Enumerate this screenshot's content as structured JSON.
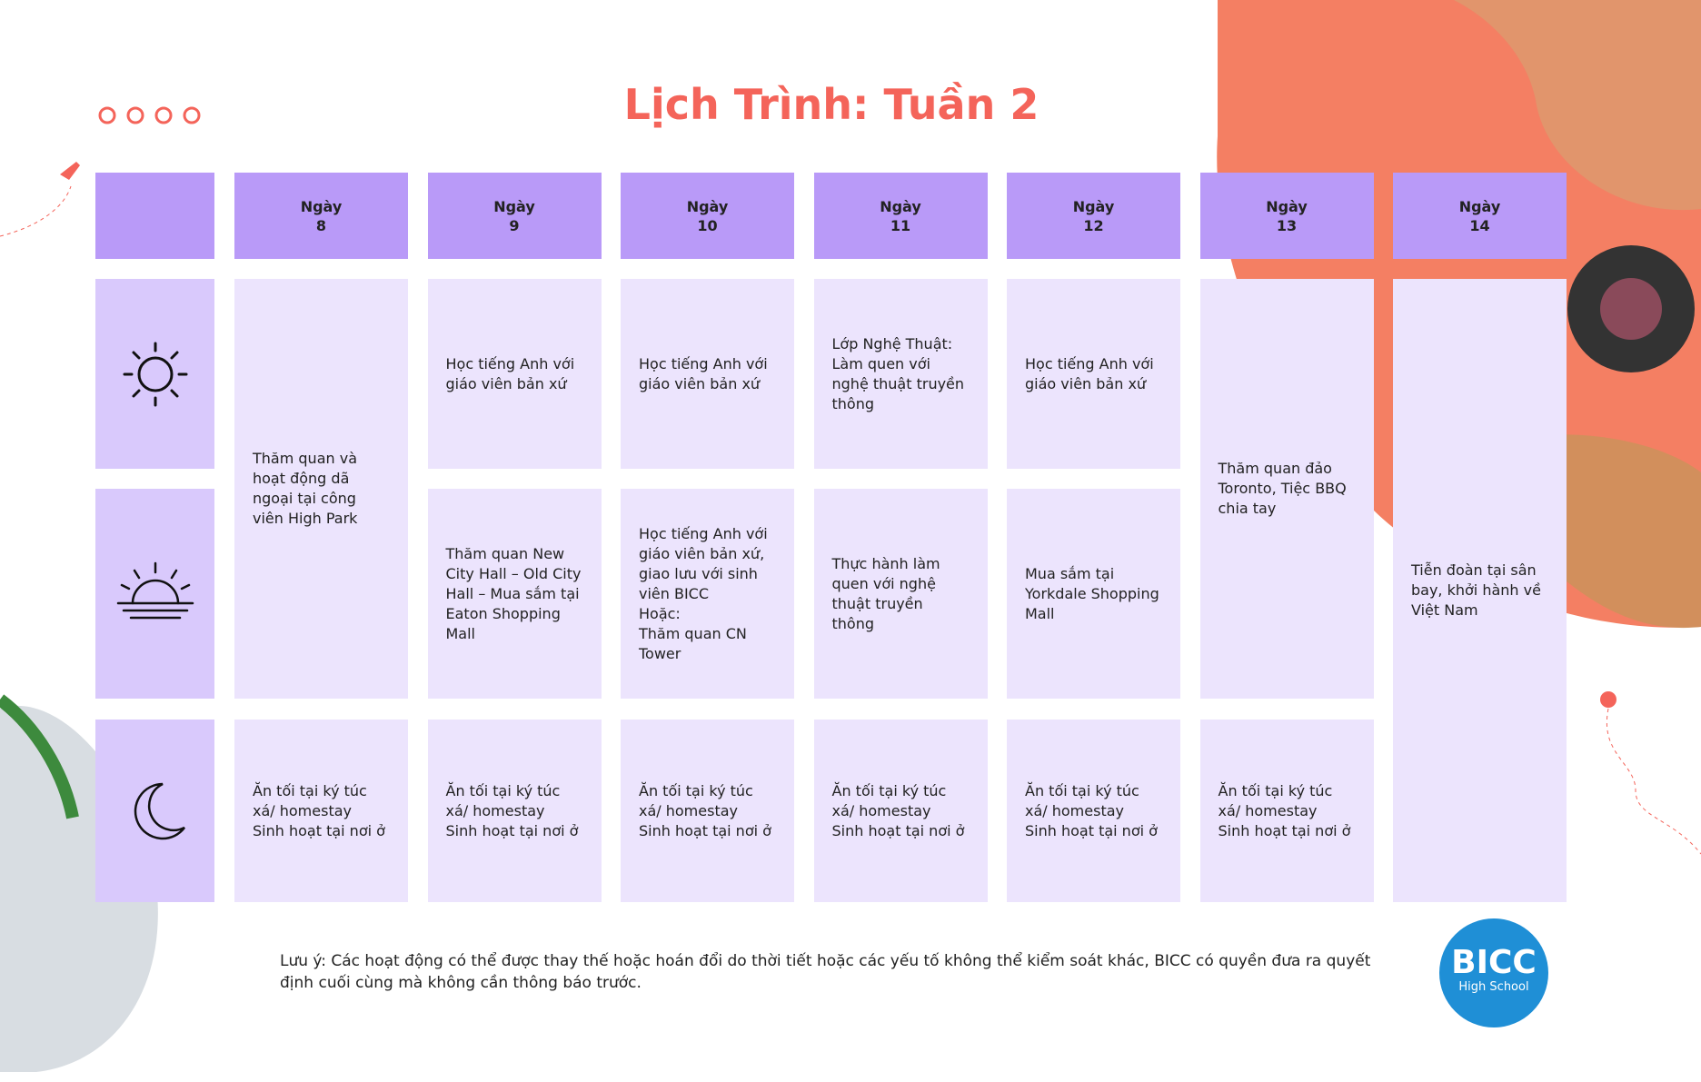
{
  "title": "Lịch Trình: Tuần 2",
  "days": [
    {
      "label": "Ngày",
      "number": "8"
    },
    {
      "label": "Ngày",
      "number": "9"
    },
    {
      "label": "Ngày",
      "number": "10"
    },
    {
      "label": "Ngày",
      "number": "11"
    },
    {
      "label": "Ngày",
      "number": "12"
    },
    {
      "label": "Ngày",
      "number": "13"
    },
    {
      "label": "Ngày",
      "number": "14"
    }
  ],
  "schedule": [
    "Thăm quan và hoạt động dã ngoại tại công viên High Park",
    "Học tiếng Anh với giáo viên bản xứ",
    "Học tiếng Anh với giáo viên bản xứ",
    "Lớp Nghệ Thuật: Làm quen với nghệ thuật truyền thông",
    "Học tiếng Anh với giáo viên bản xứ",
    "Thăm quan đảo Toronto, Tiệc BBQ chia tay",
    "Tiễn đoàn tại sân bay, khởi hành về Việt Nam",
    "Thăm quan New City Hall – Old City Hall – Mua sắm tại Eaton Shopping Mall",
    "Học tiếng Anh với giáo viên bản xứ, giao lưu với sinh viên BICC\nHoặc:\nThăm quan CN Tower",
    "Thực hành làm quen với nghệ thuật truyền thông",
    "Mua sắm tại Yorkdale Shopping Mall",
    "Ăn tối tại ký túc xá/ homestay\nSinh hoạt tại nơi ở",
    "Ăn tối tại ký túc xá/ homestay\nSinh hoạt tại nơi ở",
    "Ăn tối tại ký túc xá/ homestay\nSinh hoạt tại nơi ở",
    "Ăn tối tại ký túc xá/ homestay\nSinh hoạt tại nơi ở",
    "Ăn tối tại ký túc xá/ homestay\nSinh hoạt tại nơi ở",
    "Ăn tối tại ký túc xá/ homestay\nSinh hoạt tại nơi ở"
  ],
  "note": "Lưu ý: Các hoạt động có thể được thay thế hoặc hoán đổi do thời tiết hoặc các yếu tố không thể kiểm soát khác, BICC có quyền đưa ra quyết định cuối cùng mà không cần thông báo trước.",
  "logo": {
    "name": "BICC",
    "subtitle": "High School"
  }
}
